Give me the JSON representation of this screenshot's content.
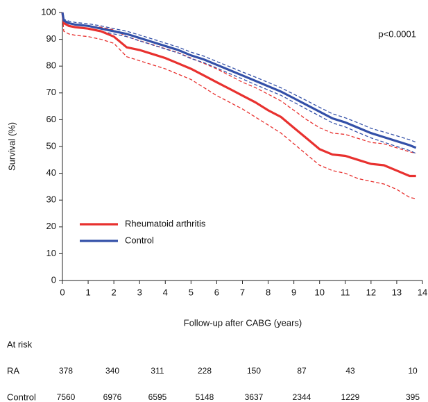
{
  "chart_data": {
    "type": "line",
    "xlabel": "Follow-up after CABG (years)",
    "ylabel": "Survival (%)",
    "annotation": "p<0.0001",
    "x": [
      0,
      0.05,
      0.25,
      0.5,
      1,
      1.5,
      2,
      2.5,
      3,
      3.5,
      4,
      4.5,
      5,
      5.5,
      6,
      6.5,
      7,
      7.5,
      8,
      8.5,
      9,
      9.5,
      10,
      10.5,
      11,
      11.5,
      12,
      12.5,
      13,
      13.5,
      13.75
    ],
    "series": [
      {
        "color": "#e8312f",
        "dashed": true,
        "values": [
          100,
          97,
          96,
          95.5,
          95,
          94.5,
          93.5,
          91,
          89.5,
          88,
          86.5,
          85,
          83,
          81,
          79,
          76.5,
          74,
          72,
          69.5,
          67,
          63.5,
          60,
          57,
          55,
          54.5,
          53,
          51.5,
          51,
          49.5,
          48,
          47.5
        ]
      },
      {
        "color": "#e8312f",
        "dashed": true,
        "values": [
          100,
          93,
          92,
          91.5,
          91,
          90,
          88.5,
          83.5,
          82,
          80.5,
          79,
          77,
          75,
          72,
          69,
          66.5,
          64,
          61,
          58,
          55,
          51,
          47,
          43,
          41,
          40,
          38,
          37,
          36,
          34,
          31,
          30.5
        ]
      },
      {
        "color": "#3350a8",
        "dashed": true,
        "values": [
          100,
          97.5,
          96.8,
          96.3,
          95.8,
          95,
          94,
          93,
          91.6,
          90.1,
          88.6,
          87.1,
          85.2,
          83.7,
          81.7,
          79.8,
          77.8,
          75.9,
          73.9,
          71.9,
          69.5,
          67.1,
          64.6,
          62.2,
          60.7,
          58.8,
          56.8,
          55.4,
          54,
          52.5,
          51.6
        ]
      },
      {
        "color": "#3350a8",
        "dashed": true,
        "values": [
          100,
          96.5,
          95.2,
          94.7,
          94.2,
          93,
          92,
          91,
          89.4,
          87.9,
          86.4,
          84.9,
          82.8,
          81.3,
          79.3,
          77.2,
          75.2,
          73.1,
          71.1,
          69.1,
          66.5,
          63.9,
          61.4,
          58.8,
          57.3,
          55.2,
          53.2,
          51.6,
          50,
          48.5,
          47.4
        ]
      },
      {
        "name": "Rheumatoid arthritis",
        "color": "#e8312f",
        "values": [
          100,
          96,
          95,
          94.5,
          94,
          93,
          91,
          87,
          86,
          84.5,
          83,
          81,
          79,
          76.5,
          74,
          71.5,
          69,
          66.5,
          63.5,
          61,
          57,
          53,
          49,
          47,
          46.5,
          45,
          43.5,
          43,
          41,
          39,
          39
        ]
      },
      {
        "name": "Control",
        "color": "#3350a8",
        "values": [
          100,
          97,
          96,
          95.5,
          95,
          94,
          93,
          92,
          90.5,
          89,
          87.5,
          86,
          84,
          82.5,
          80.5,
          78.5,
          76.5,
          74.5,
          72.5,
          70.5,
          68,
          65.5,
          63,
          60.5,
          59,
          57,
          55,
          53.5,
          52,
          50.5,
          49.5
        ]
      }
    ],
    "xlim": [
      0,
      14
    ],
    "xticks": [
      0,
      1,
      2,
      3,
      4,
      5,
      6,
      7,
      8,
      9,
      10,
      11,
      12,
      13,
      14
    ],
    "ylim": [
      0,
      100
    ],
    "yticks": [
      0,
      10,
      20,
      30,
      40,
      50,
      60,
      70,
      80,
      90,
      100
    ],
    "grid": false,
    "legend": "lower left"
  },
  "at_risk": {
    "title": "At risk",
    "rows": [
      {
        "label": "RA",
        "values": [
          378,
          340,
          311,
          228,
          150,
          87,
          43,
          10
        ]
      },
      {
        "label": "Control",
        "values": [
          7560,
          6976,
          6595,
          5148,
          3637,
          2344,
          1229,
          395
        ]
      }
    ]
  }
}
